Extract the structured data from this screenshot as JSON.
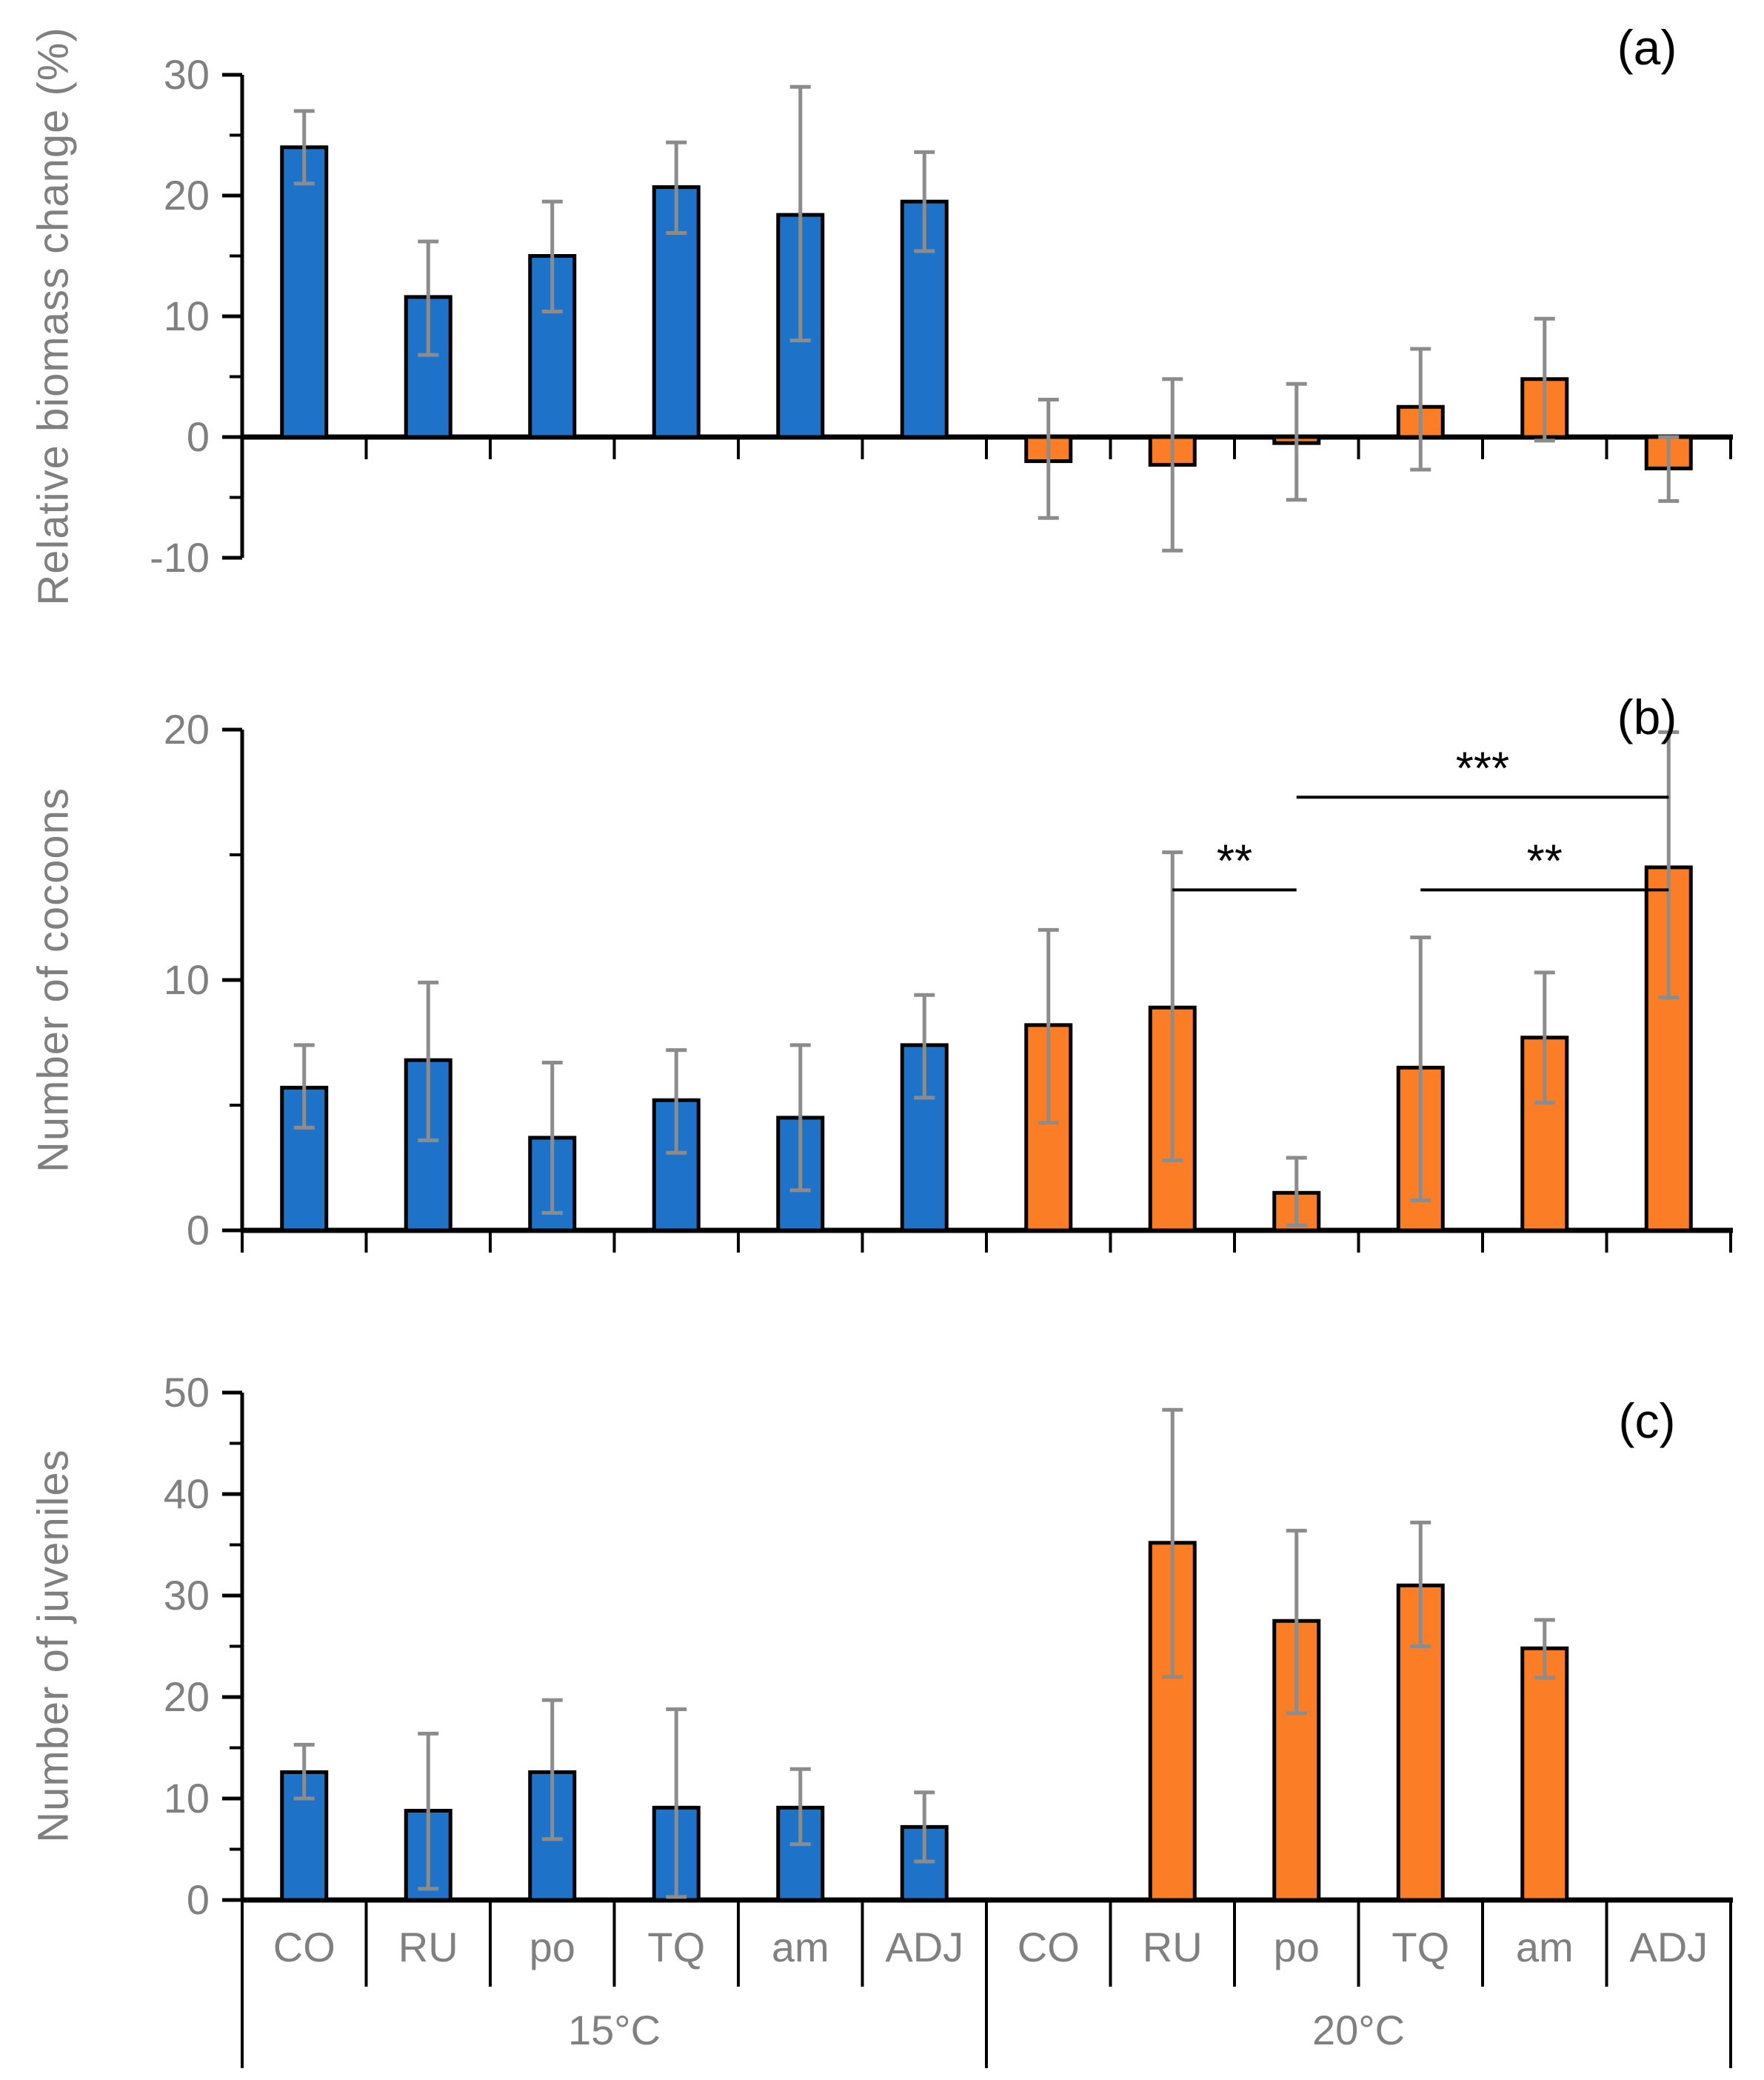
{
  "colors": {
    "series_15C": "#1E73C8",
    "series_20C": "#FB7D25",
    "bar_outline": "#000000",
    "error_bar": "#8C8C8C",
    "axis": "#000000",
    "tick_label": "#808080",
    "category_label": "#808080",
    "significance": "#000000"
  },
  "categories": [
    "CO",
    "RU",
    "po",
    "TQ",
    "am",
    "ADJ"
  ],
  "groups": [
    {
      "key": "15C",
      "label": "15°C"
    },
    {
      "key": "20C",
      "label": "20°C"
    }
  ],
  "chart_data": [
    {
      "type": "bar",
      "panel_id": "a",
      "panel_letter": "(a)",
      "ylabel": "Relative biomass change (%)",
      "xlabel": "",
      "ylim": [
        -10,
        30
      ],
      "yticks_labeled": [
        -10,
        0,
        10,
        20,
        30
      ],
      "yticks_minor": [
        -5,
        5,
        15,
        25
      ],
      "grid": false,
      "legend": "none",
      "series": [
        {
          "key": "15C",
          "name": "15°C",
          "color_key": "series_15C",
          "values": [
            24.0,
            11.6,
            15.0,
            20.7,
            18.4,
            19.5
          ],
          "err_low": [
            21.0,
            6.8,
            10.4,
            16.9,
            8.0,
            15.4
          ],
          "err_high": [
            27.0,
            16.2,
            19.5,
            24.4,
            29.0,
            23.6
          ]
        },
        {
          "key": "20C",
          "name": "20°C",
          "color_key": "series_20C",
          "values": [
            -2.0,
            -2.3,
            -0.5,
            2.5,
            4.8,
            -2.6
          ],
          "err_low": [
            -6.7,
            -9.4,
            -5.2,
            -2.7,
            -0.3,
            -5.3
          ],
          "err_high": [
            3.1,
            4.8,
            4.4,
            7.3,
            9.8,
            0.0
          ]
        }
      ]
    },
    {
      "type": "bar",
      "panel_id": "b",
      "panel_letter": "(b)",
      "ylabel": "Number of cocoons",
      "xlabel": "",
      "ylim": [
        0,
        20
      ],
      "yticks_labeled": [
        0,
        10,
        20
      ],
      "yticks_minor": [
        5,
        15
      ],
      "grid": false,
      "legend": "none",
      "series": [
        {
          "key": "15C",
          "name": "15°C",
          "color_key": "series_15C",
          "values": [
            5.7,
            6.8,
            3.7,
            5.2,
            4.5,
            7.4
          ],
          "err_low": [
            4.1,
            3.6,
            0.7,
            3.1,
            1.6,
            5.3
          ],
          "err_high": [
            7.4,
            9.9,
            6.7,
            7.2,
            7.4,
            9.4
          ]
        },
        {
          "key": "20C",
          "name": "20°C",
          "color_key": "series_20C",
          "values": [
            8.2,
            8.9,
            1.5,
            6.5,
            7.7,
            14.5
          ],
          "err_low": [
            4.3,
            2.8,
            0.2,
            1.2,
            5.1,
            9.3
          ],
          "err_high": [
            12.0,
            15.1,
            2.9,
            11.7,
            10.3,
            19.9
          ]
        }
      ],
      "significance": [
        {
          "label": "**",
          "g1": 1,
          "c1": 1,
          "g2": 1,
          "c2": 2,
          "y": 13.6
        },
        {
          "label": "***",
          "g1": 1,
          "c1": 2,
          "g2": 1,
          "c2": 5,
          "y": 17.3
        },
        {
          "label": "**",
          "g1": 1,
          "c1": 3,
          "g2": 1,
          "c2": 5,
          "y": 13.6
        }
      ]
    },
    {
      "type": "bar",
      "panel_id": "c",
      "panel_letter": "(c)",
      "ylabel": "Number of juveniles",
      "xlabel": "",
      "ylim": [
        0,
        50
      ],
      "yticks_labeled": [
        0,
        10,
        20,
        30,
        40,
        50
      ],
      "yticks_minor": [
        5,
        15,
        25,
        35,
        45
      ],
      "grid": false,
      "legend": "none",
      "series": [
        {
          "key": "15C",
          "name": "15°C",
          "color_key": "series_15C",
          "values": [
            12.6,
            8.8,
            12.6,
            9.1,
            9.1,
            7.2
          ],
          "err_low": [
            10.0,
            1.1,
            6.0,
            0.3,
            5.5,
            3.8
          ],
          "err_high": [
            15.3,
            16.4,
            19.7,
            18.8,
            12.9,
            10.6
          ]
        },
        {
          "key": "20C",
          "name": "20°C",
          "color_key": "series_20C",
          "values": [
            null,
            35.2,
            27.5,
            31.0,
            24.8,
            null
          ],
          "err_low": [
            null,
            22.0,
            18.4,
            25.0,
            21.9,
            null
          ],
          "err_high": [
            null,
            48.3,
            36.4,
            37.2,
            27.6,
            null
          ]
        }
      ]
    }
  ]
}
